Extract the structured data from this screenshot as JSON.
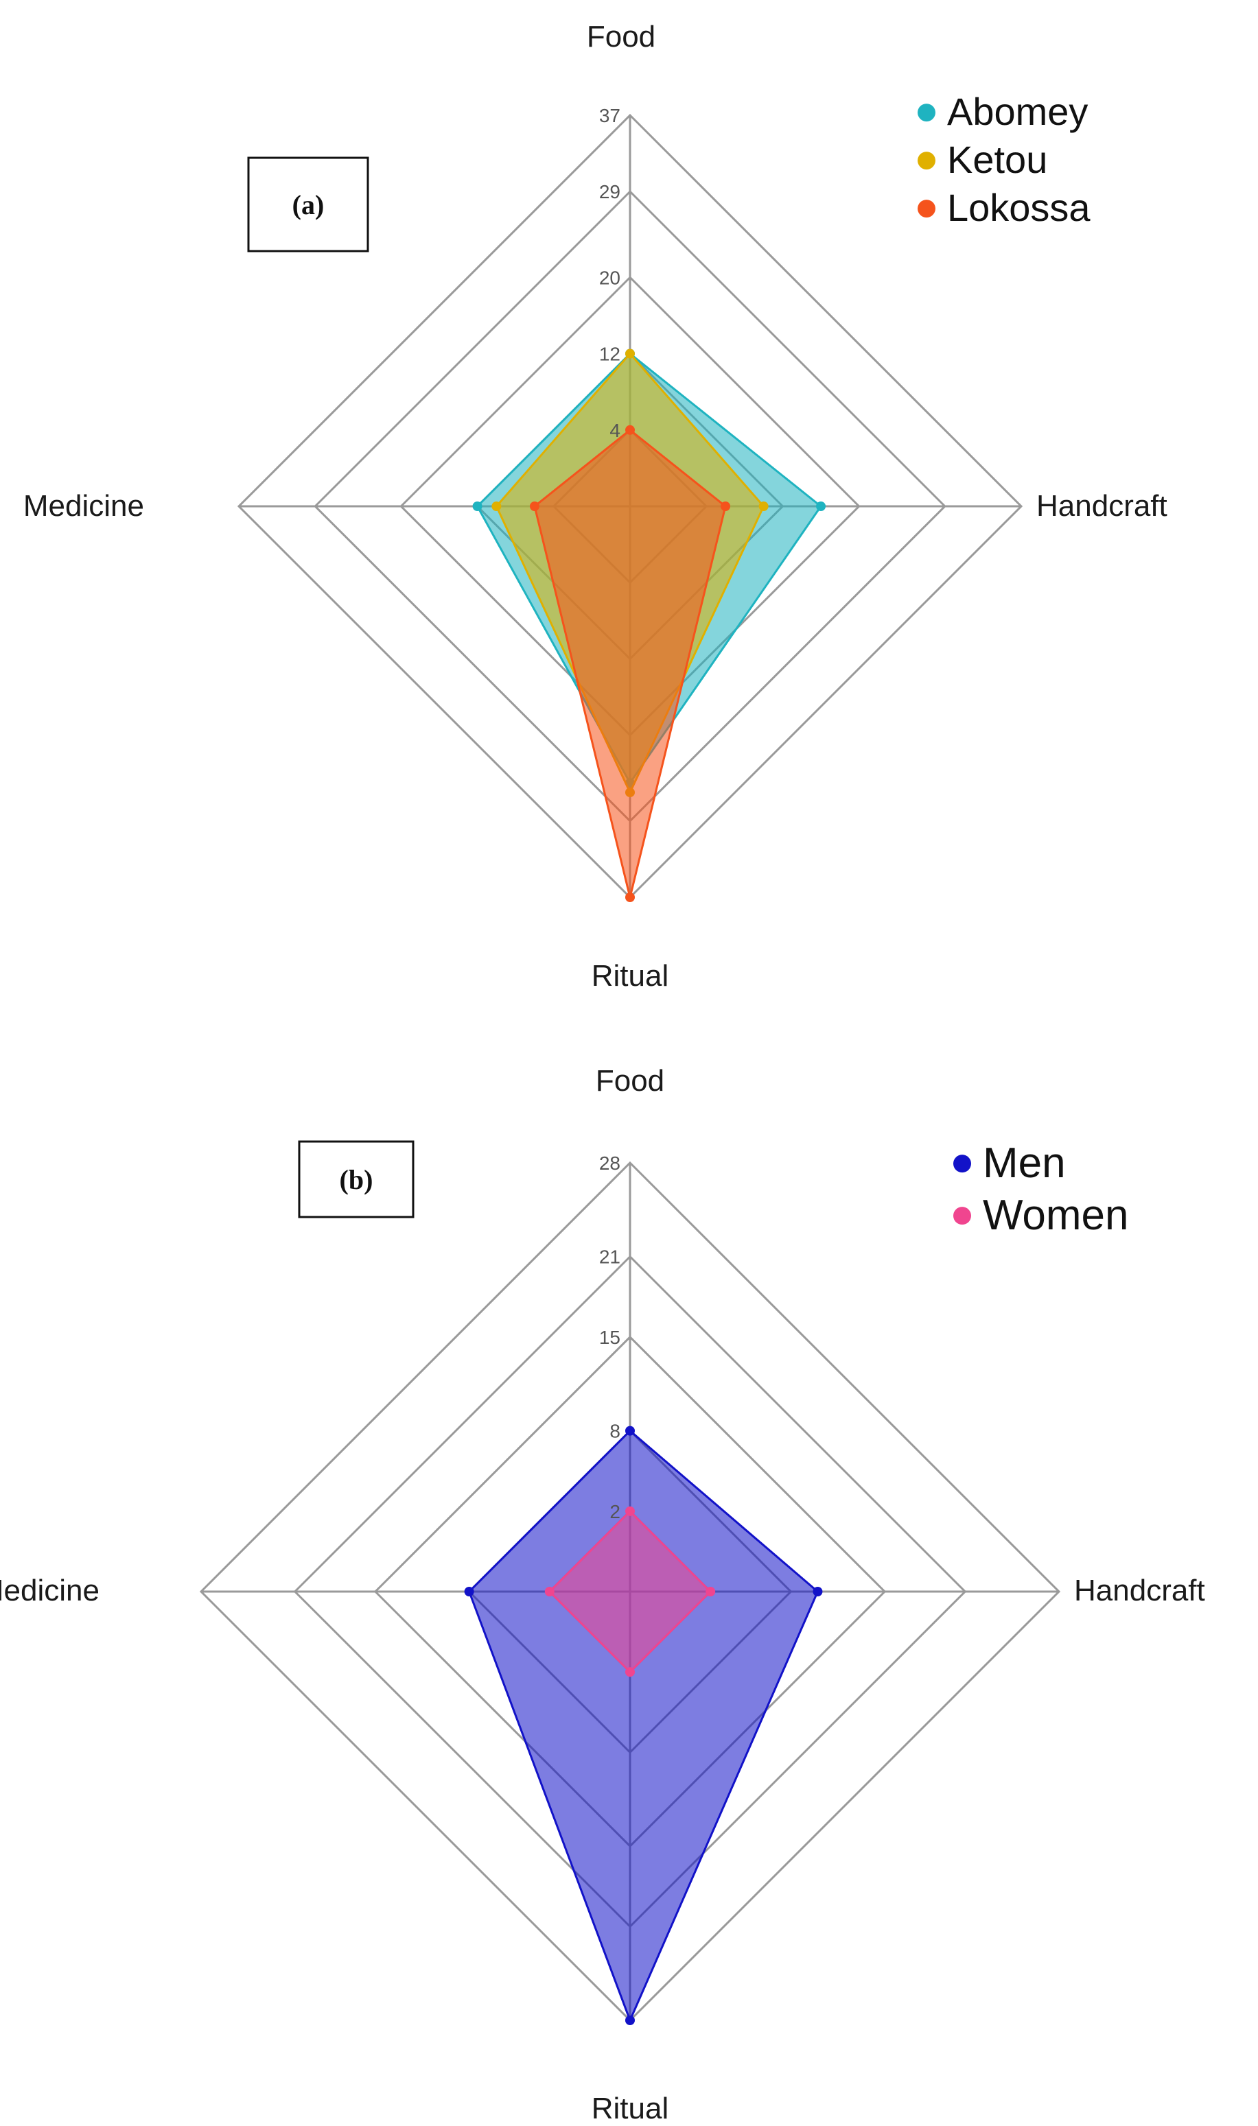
{
  "colors": {
    "Abomey": "#1fb3c0",
    "Ketou": "#e0b000",
    "Lokossa": "#f5531c",
    "Men": "#1212c8",
    "Women": "#f0458f"
  },
  "chart_data": [
    {
      "type": "radar",
      "panel_label": "(a)",
      "axes": [
        "Food",
        "Handcraft",
        "Ritual",
        "Medicine"
      ],
      "tick_labels": [
        "4",
        "12",
        "20",
        "29",
        "37"
      ],
      "range": [
        -4,
        37
      ],
      "grid": true,
      "legend_position": "top-right",
      "series": [
        {
          "name": "Abomey",
          "color": "Abomey",
          "values": [
            12,
            16,
            25,
            12
          ]
        },
        {
          "name": "Ketou",
          "color": "Ketou",
          "values": [
            12,
            10,
            26,
            10
          ]
        },
        {
          "name": "Lokossa",
          "color": "Lokossa",
          "values": [
            4,
            6,
            37,
            6
          ]
        }
      ]
    },
    {
      "type": "radar",
      "panel_label": "(b)",
      "axes": [
        "Food",
        "Handcraft",
        "Ritual",
        "Medicine"
      ],
      "tick_labels": [
        "2",
        "8",
        "15",
        "21",
        "28"
      ],
      "range": [
        -4,
        28
      ],
      "grid": true,
      "legend_position": "top-right",
      "series": [
        {
          "name": "Men",
          "color": "Men",
          "values": [
            8,
            10,
            28,
            8
          ]
        },
        {
          "name": "Women",
          "color": "Women",
          "values": [
            2,
            2,
            2,
            2
          ]
        }
      ]
    }
  ]
}
